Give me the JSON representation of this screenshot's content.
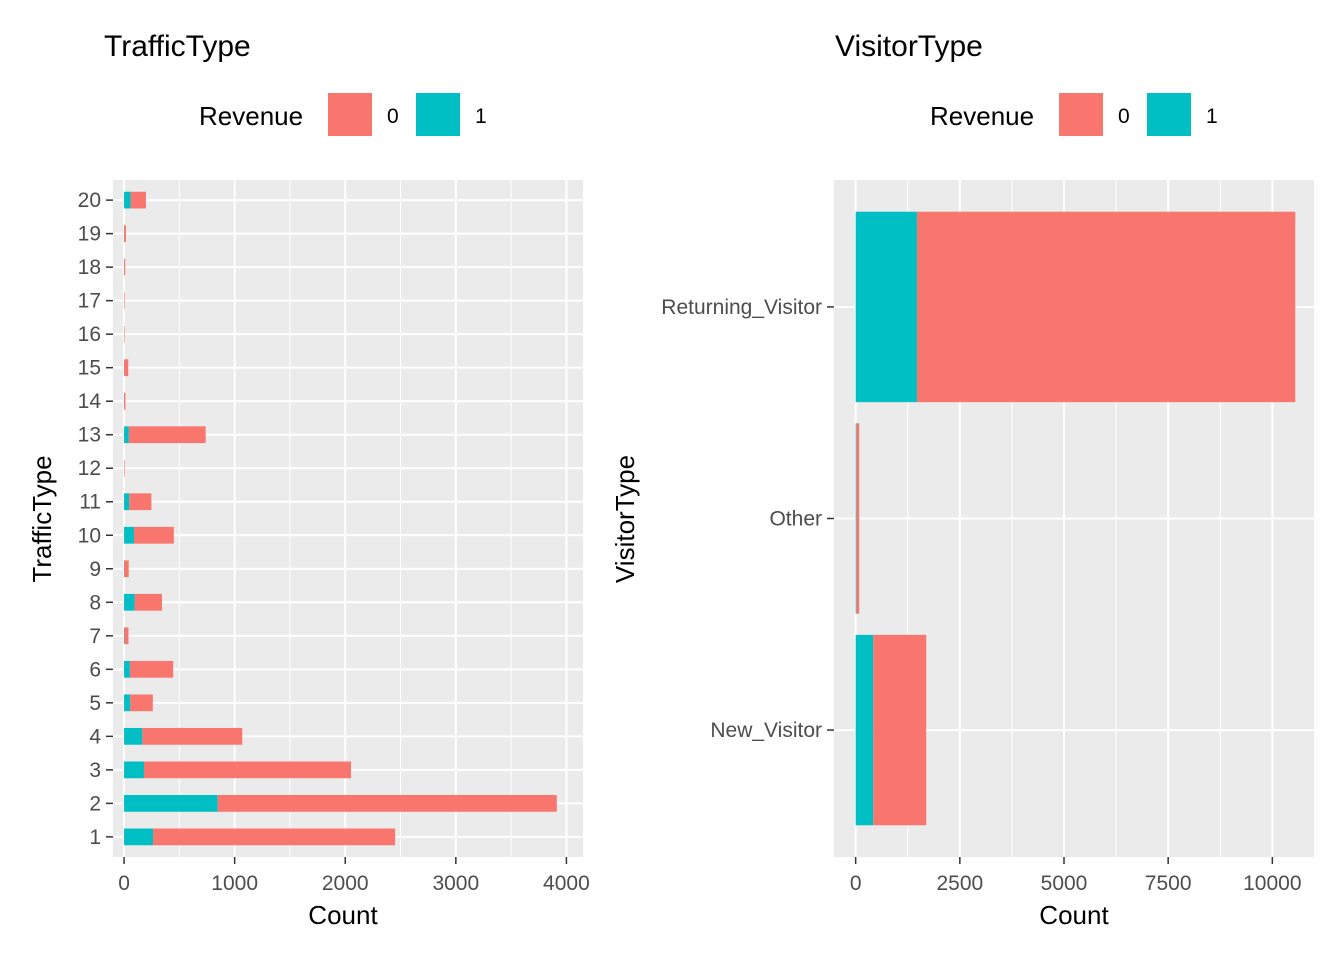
{
  "colors": {
    "revenue_0": "#F8766D",
    "revenue_1": "#00BFC4",
    "panel_bg": "#EBEBEB",
    "grid": "#FFFFFF",
    "tick_text": "#4D4D4D"
  },
  "chart_data": [
    {
      "type": "bar",
      "orientation": "horizontal",
      "stacked": true,
      "title": "TrafficType",
      "xlabel": "Count",
      "ylabel": "TrafficType",
      "legend": {
        "title": "Revenue",
        "position": "top",
        "entries": [
          "0",
          "1"
        ]
      },
      "xlim": [
        -100,
        4150
      ],
      "x_ticks": [
        0,
        1000,
        2000,
        3000,
        4000
      ],
      "x_tick_labels": [
        "0",
        "1000",
        "2000",
        "3000",
        "4000"
      ],
      "categories": [
        "1",
        "2",
        "3",
        "4",
        "5",
        "6",
        "7",
        "8",
        "9",
        "10",
        "11",
        "12",
        "13",
        "14",
        "15",
        "16",
        "17",
        "18",
        "19",
        "20"
      ],
      "series": [
        {
          "name": "1",
          "values": [
            262,
            847,
            180,
            165,
            56,
            53,
            2,
            95,
            1,
            90,
            47,
            0,
            43,
            0,
            0,
            0,
            0,
            0,
            0,
            60
          ]
        },
        {
          "name": "0",
          "values": [
            2189,
            3066,
            1872,
            904,
            204,
            391,
            38,
            248,
            41,
            360,
            200,
            1,
            695,
            13,
            38,
            3,
            1,
            10,
            17,
            138
          ]
        }
      ],
      "grid": true
    },
    {
      "type": "bar",
      "orientation": "horizontal",
      "stacked": true,
      "title": "VisitorType",
      "xlabel": "Count",
      "ylabel": "VisitorType",
      "legend": {
        "title": "Revenue",
        "position": "top",
        "entries": [
          "0",
          "1"
        ]
      },
      "xlim": [
        -520,
        11000
      ],
      "x_ticks": [
        0,
        2500,
        5000,
        7500,
        10000
      ],
      "x_tick_labels": [
        "0",
        "2500",
        "5000",
        "7500",
        "10000"
      ],
      "categories": [
        "New_Visitor",
        "Other",
        "Returning_Visitor"
      ],
      "series": [
        {
          "name": "1",
          "values": [
            422,
            16,
            1470
          ]
        },
        {
          "name": "0",
          "values": [
            1272,
            69,
            9081
          ]
        }
      ],
      "grid": true
    }
  ]
}
